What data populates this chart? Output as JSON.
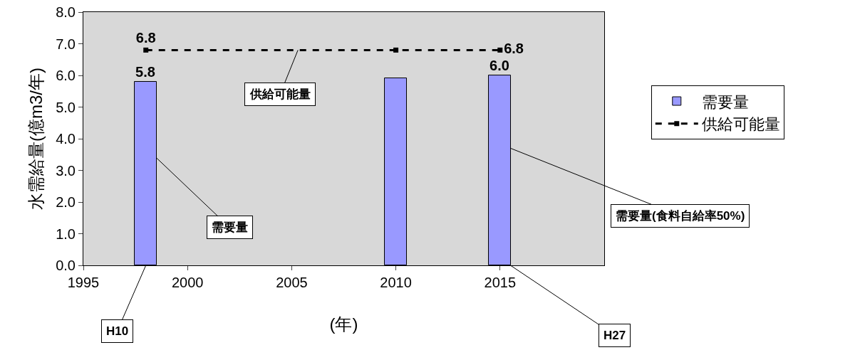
{
  "chart_data": {
    "type": "bar",
    "xlabel": "(年)",
    "ylabel": "水需給量(億m3/年)",
    "x": [
      1998,
      2010,
      2015
    ],
    "series": [
      {
        "name": "需要量",
        "color": "#9999ff",
        "values": [
          5.8,
          5.9,
          6.0
        ],
        "value_labels": [
          "5.8",
          null,
          "6.0"
        ]
      },
      {
        "name": "供給可能量",
        "type": "line",
        "color": "#000000",
        "values": [
          6.8,
          6.8,
          6.8
        ],
        "value_labels": [
          "6.8",
          null,
          "6.8"
        ],
        "marker": "square",
        "line_style": "dashed"
      }
    ],
    "xlim": [
      1995,
      2020
    ],
    "xticks": [
      1995,
      2000,
      2005,
      2010,
      2015
    ],
    "ylim": [
      0,
      8
    ],
    "yticks": [
      {
        "value": 0,
        "label": "0.0"
      },
      {
        "value": 1,
        "label": "1.0"
      },
      {
        "value": 2,
        "label": "2.0"
      },
      {
        "value": 3,
        "label": "3.0"
      },
      {
        "value": 4,
        "label": "4.0"
      },
      {
        "value": 5,
        "label": "5.0"
      },
      {
        "value": 6,
        "label": "6.0"
      },
      {
        "value": 7,
        "label": "7.0"
      },
      {
        "value": 8,
        "label": "8.0"
      }
    ],
    "grid": false,
    "legend": "right",
    "annotations": [
      {
        "text": "供給可能量",
        "x": 2005.3,
        "y": 6.8
      },
      {
        "text": "需要量",
        "x": 1998.5,
        "y": 3.4
      },
      {
        "text": "需要量(食料自給率50%)",
        "x": 2015.5,
        "y": 3.7
      },
      {
        "text": "H10",
        "x": 1998,
        "y": 0
      },
      {
        "text": "H27",
        "x": 2015.5,
        "y": 0
      }
    ]
  }
}
